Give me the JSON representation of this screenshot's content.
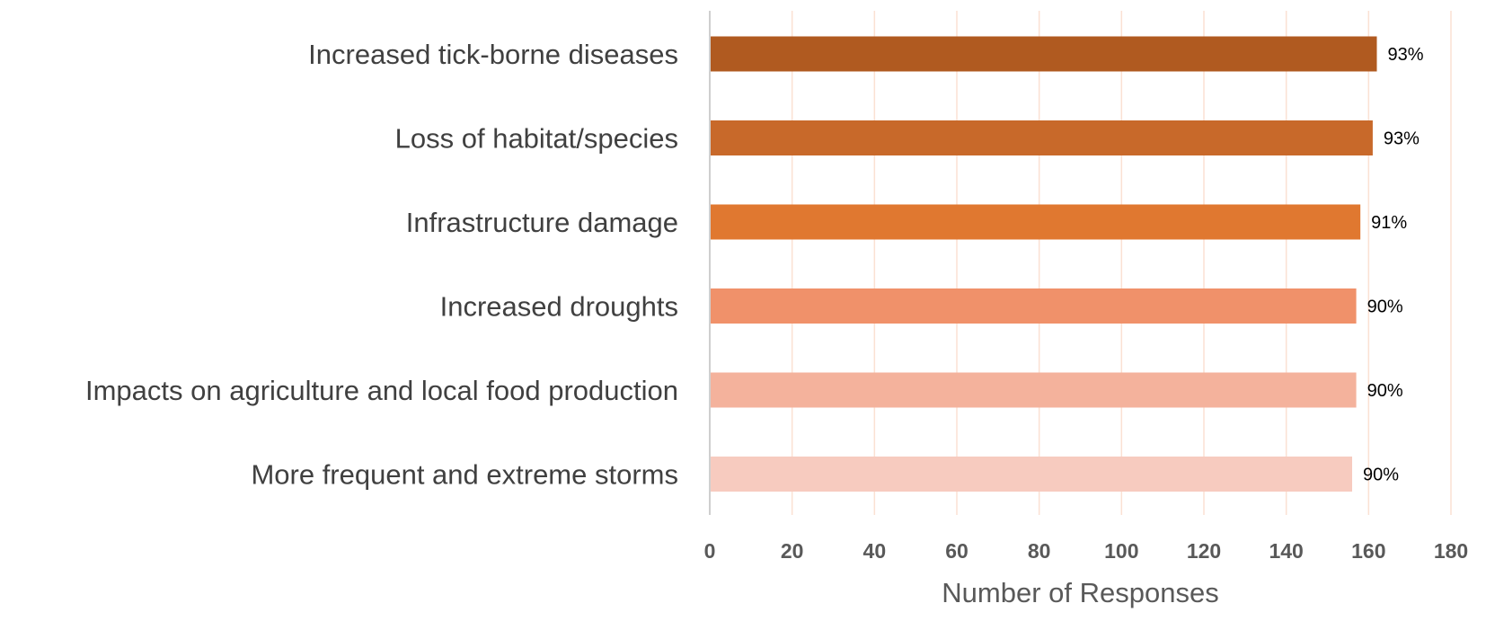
{
  "chart_data": {
    "type": "bar",
    "orientation": "horizontal",
    "categories": [
      "Increased tick-borne diseases",
      "Loss of habitat/species",
      "Infrastructure damage",
      "Increased droughts",
      "Impacts on agriculture and local food production",
      "More frequent and extreme storms"
    ],
    "values": [
      162,
      161,
      158,
      157,
      157,
      156
    ],
    "data_labels": [
      "93%",
      "93%",
      "91%",
      "90%",
      "90%",
      "90%"
    ],
    "bar_colors": [
      "#B05A20",
      "#C8692A",
      "#E07830",
      "#F0916A",
      "#F4B29C",
      "#F7CBBF"
    ],
    "xlabel": "Number of Responses",
    "ylabel": "",
    "title": "",
    "xlim": [
      0,
      180
    ],
    "xticks": [
      0,
      20,
      40,
      60,
      80,
      100,
      120,
      140,
      160,
      180
    ],
    "grid": "vertical",
    "grid_color": "#FBE1D3",
    "axis_color": "#BFBFBF",
    "legend": "none"
  }
}
